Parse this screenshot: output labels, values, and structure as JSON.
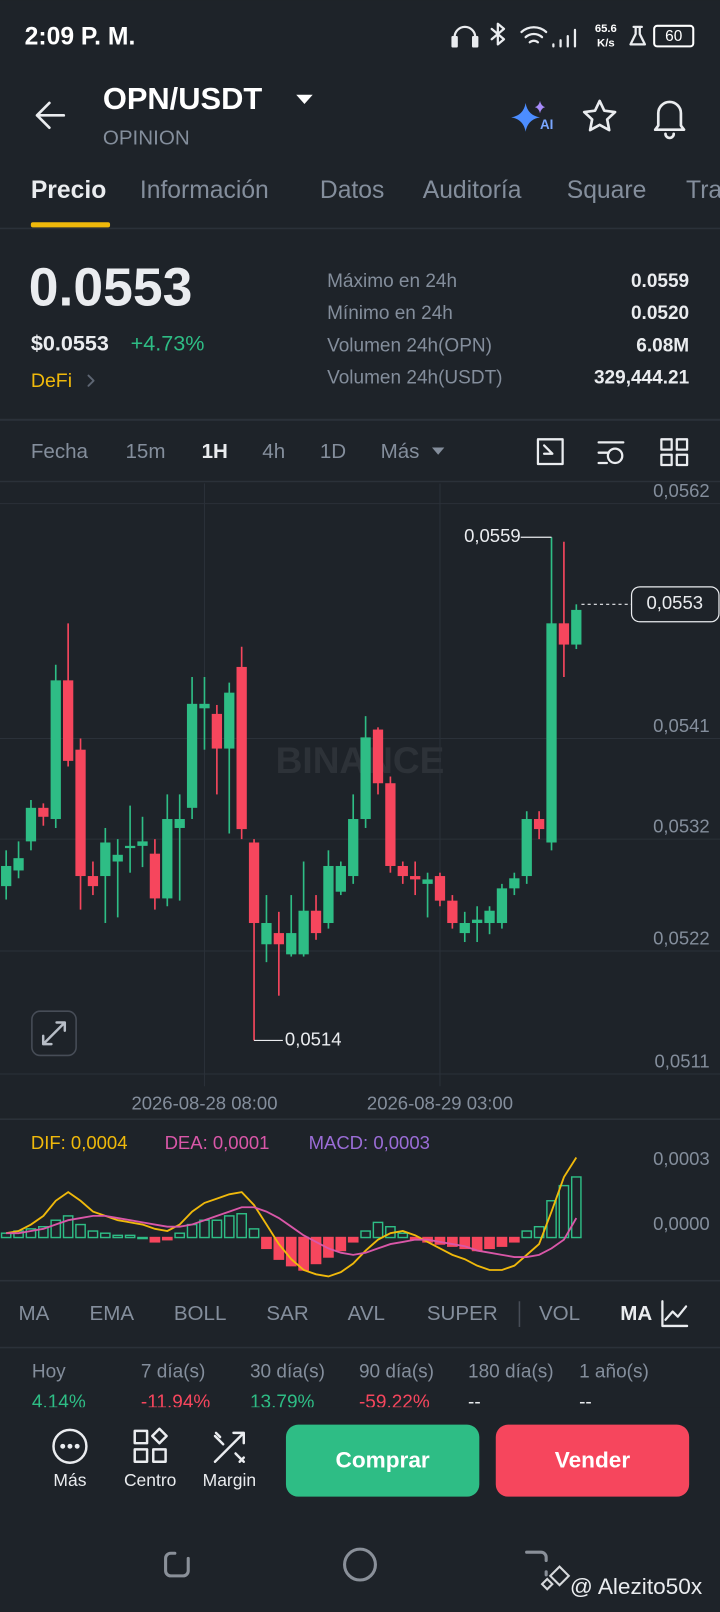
{
  "status_bar": {
    "time": "2:09 P. M.",
    "speed": "65.6",
    "speed_unit": "K/s",
    "battery": "60"
  },
  "header": {
    "pair": "OPN/USDT",
    "name": "OPINION"
  },
  "tabs": [
    "Precio",
    "Información",
    "Datos",
    "Auditoría",
    "Square",
    "Tra"
  ],
  "price": {
    "last": "0.0553",
    "usd": "$0.0553",
    "change": "+4.73%",
    "tag": "DeFi"
  },
  "stats": [
    {
      "label": "Máximo en 24h",
      "value": "0.0559"
    },
    {
      "label": "Mínimo en 24h",
      "value": "0.0520"
    },
    {
      "label": "Volumen 24h(OPN)",
      "value": "6.08M"
    },
    {
      "label": "Volumen 24h(USDT)",
      "value": "329,444.21"
    }
  ],
  "timeframes": [
    "Fecha",
    "15m",
    "1H",
    "4h",
    "1D",
    "Más"
  ],
  "watermark": "BINANCE",
  "chart_data": [
    {
      "type": "candlestick",
      "up_color": "#2ebd85",
      "down_color": "#f6465d",
      "grid": true,
      "categories": [
        null,
        null,
        null,
        null,
        null,
        null,
        null,
        null,
        null,
        null,
        null,
        null,
        null,
        null,
        null,
        null,
        "2026-08-28 08:00",
        null,
        null,
        null,
        null,
        null,
        null,
        null,
        null,
        null,
        null,
        null,
        null,
        null,
        null,
        null,
        null,
        null,
        null,
        "2026-08-29 03:00",
        null,
        null,
        null,
        null,
        null,
        null,
        null,
        null,
        null,
        null,
        null
      ],
      "open": [
        0.05278,
        0.05292,
        0.05318,
        0.05348,
        0.05338,
        0.05462,
        0.054,
        0.05287,
        0.05287,
        0.053,
        0.05312,
        0.05314,
        0.05307,
        0.05267,
        0.0533,
        0.05348,
        0.05437,
        0.05432,
        0.05401,
        0.05474,
        0.05317,
        0.05226,
        0.05236,
        0.05217,
        0.05217,
        0.05256,
        0.05245,
        0.05273,
        0.05287,
        0.05338,
        0.05418,
        0.0537,
        0.05296,
        0.05287,
        0.0528,
        0.05287,
        0.05265,
        0.05236,
        0.05245,
        0.05245,
        0.05245,
        0.05276,
        0.05287,
        0.05338,
        0.05317,
        0.05513,
        0.05494
      ],
      "high": [
        0.0531,
        0.05318,
        0.05355,
        0.05352,
        0.05476,
        0.05513,
        0.0541,
        0.053,
        0.0533,
        0.0532,
        0.0535,
        0.0534,
        0.0532,
        0.0536,
        0.0536,
        0.05465,
        0.05465,
        0.0544,
        0.0546,
        0.05492,
        0.0532,
        0.0527,
        0.05255,
        0.0527,
        0.053,
        0.0527,
        0.0531,
        0.053,
        0.0536,
        0.0543,
        0.0542,
        0.05376,
        0.053,
        0.053,
        0.0529,
        0.0529,
        0.0527,
        0.05255,
        0.0526,
        0.0526,
        0.0528,
        0.0529,
        0.05345,
        0.05345,
        0.0559,
        0.05586,
        0.0553
      ],
      "low": [
        0.05266,
        0.05285,
        0.0531,
        0.05332,
        0.0533,
        0.05385,
        0.05257,
        0.0527,
        0.05245,
        0.0525,
        0.0529,
        0.05295,
        0.05257,
        0.0526,
        0.05265,
        0.05338,
        0.054,
        0.0536,
        0.05325,
        0.0532,
        0.0514,
        0.0521,
        0.0518,
        0.05215,
        0.05215,
        0.0523,
        0.0524,
        0.0527,
        0.0528,
        0.0533,
        0.0536,
        0.0529,
        0.0528,
        0.0527,
        0.0525,
        0.0526,
        0.0524,
        0.05228,
        0.05228,
        0.05235,
        0.0524,
        0.0527,
        0.0528,
        0.0532,
        0.0531,
        0.05465,
        0.0549
      ],
      "close": [
        0.05296,
        0.05303,
        0.05348,
        0.0534,
        0.05462,
        0.0539,
        0.05287,
        0.05278,
        0.05317,
        0.05306,
        0.05314,
        0.05318,
        0.05267,
        0.05338,
        0.05338,
        0.05441,
        0.05441,
        0.05401,
        0.05451,
        0.05329,
        0.05245,
        0.05245,
        0.05226,
        0.05236,
        0.05256,
        0.05236,
        0.05296,
        0.05296,
        0.05338,
        0.05411,
        0.0537,
        0.05296,
        0.05287,
        0.05284,
        0.05284,
        0.05265,
        0.05245,
        0.05245,
        0.05248,
        0.05256,
        0.05276,
        0.05285,
        0.05338,
        0.05329,
        0.05513,
        0.05494,
        0.05525
      ],
      "ylim": [
        0.05099,
        0.05638
      ],
      "yticks": [
        {
          "value": 0.0562,
          "label": "0,0562"
        },
        {
          "value": 0.0541,
          "label": "0,0541"
        },
        {
          "value": 0.0532,
          "label": "0,0532"
        },
        {
          "value": 0.0522,
          "label": "0,0522"
        },
        {
          "value": 0.0511,
          "label": "0,0511"
        }
      ],
      "annotations": [
        {
          "value": 0.0559,
          "label": "0,0559"
        },
        {
          "value": 0.0514,
          "label": "0,0514"
        }
      ],
      "last_price": {
        "value": 0.0553,
        "label": "0,0553"
      }
    },
    {
      "type": "macd",
      "up_color": "#2ebd85",
      "down_color": "#f6465d",
      "series": [
        {
          "name": "DIF: 0,0004",
          "type": "line",
          "color": "#f0b90b",
          "values": [
            2e-05,
            3e-05,
            6e-05,
            0.0001,
            0.00017,
            0.00021,
            0.00017,
            0.00012,
            0.0001,
            8e-05,
            7e-05,
            6e-05,
            4e-05,
            3e-05,
            6e-05,
            0.00012,
            0.00016,
            0.00018,
            0.0002,
            0.00021,
            0.00015,
            6e-05,
            -3e-05,
            -0.0001,
            -0.00015,
            -0.00017,
            -0.00018,
            -0.00016,
            -0.00012,
            -6e-05,
            -1e-05,
            2e-05,
            3e-05,
            1e-05,
            -2e-05,
            -5e-05,
            -8e-05,
            -0.0001,
            -0.00013,
            -0.00015,
            -0.00015,
            -0.00013,
            -8e-05,
            -3e-05,
            0.00012,
            0.00028,
            0.00037
          ]
        },
        {
          "name": "DEA: 0,0001",
          "type": "line",
          "color": "#d957a8",
          "values": [
            2e-05,
            2e-05,
            3e-05,
            4e-05,
            6e-05,
            8e-05,
            9e-05,
            0.0001,
            0.0001,
            9e-05,
            8e-05,
            7e-05,
            6e-05,
            5e-05,
            5e-05,
            6e-05,
            8e-05,
            0.0001,
            0.00012,
            0.00014,
            0.00014,
            0.00012,
            9e-05,
            5e-05,
            1e-05,
            -2e-05,
            -5e-05,
            -7e-05,
            -8e-05,
            -7e-05,
            -5e-05,
            -3e-05,
            -2e-05,
            -1e-05,
            -1e-05,
            -2e-05,
            -3e-05,
            -4e-05,
            -6e-05,
            -7e-05,
            -8e-05,
            -9e-05,
            -9e-05,
            -8e-05,
            -5e-05,
            -1e-05,
            9e-05
          ]
        },
        {
          "name": "MACD: 0,0003",
          "type": "bar",
          "color": "#9b6dd7",
          "values": [
            2e-05,
            3e-05,
            4e-05,
            5e-05,
            8e-05,
            0.0001,
            6e-05,
            3e-05,
            2e-05,
            1e-05,
            1e-05,
            0,
            -2e-05,
            -1e-05,
            2e-05,
            6e-05,
            8e-05,
            8e-05,
            0.0001,
            0.00011,
            4e-05,
            -5e-05,
            -0.0001,
            -0.00013,
            -0.00015,
            -0.00012,
            -9e-05,
            -6e-05,
            -2e-05,
            3e-05,
            7e-05,
            5e-05,
            2e-05,
            -1e-05,
            -2e-05,
            -3e-05,
            -4e-05,
            -5e-05,
            -6e-05,
            -5e-05,
            -4e-05,
            -2e-05,
            3e-05,
            5e-05,
            0.00017,
            0.00024,
            0.00028
          ]
        }
      ],
      "ylim": [
        -0.00019,
        0.00049
      ],
      "yticks": [
        {
          "value": 0.0003,
          "label": "0,0003"
        },
        {
          "value": 0,
          "label": "0,0000"
        }
      ]
    }
  ],
  "indicators": [
    "MA",
    "EMA",
    "BOLL",
    "SAR",
    "AVL",
    "SUPER",
    "VOL",
    "MA"
  ],
  "performance": [
    {
      "period": "Hoy",
      "change": "4.14%",
      "color": "#2ebd85"
    },
    {
      "period": "7 día(s)",
      "change": "-11.94%",
      "color": "#f6465d"
    },
    {
      "period": "30 día(s)",
      "change": "13.79%",
      "color": "#2ebd85"
    },
    {
      "period": "90 día(s)",
      "change": "-59.22%",
      "color": "#f6465d"
    },
    {
      "period": "180 día(s)",
      "change": "--",
      "color": "#eaecef"
    },
    {
      "period": "1 año(s)",
      "change": "--",
      "color": "#eaecef"
    }
  ],
  "actions": [
    "Más",
    "Centro",
    "Margin"
  ],
  "buy": "Comprar",
  "sell": "Vender",
  "credit": "@ Alezito50x"
}
